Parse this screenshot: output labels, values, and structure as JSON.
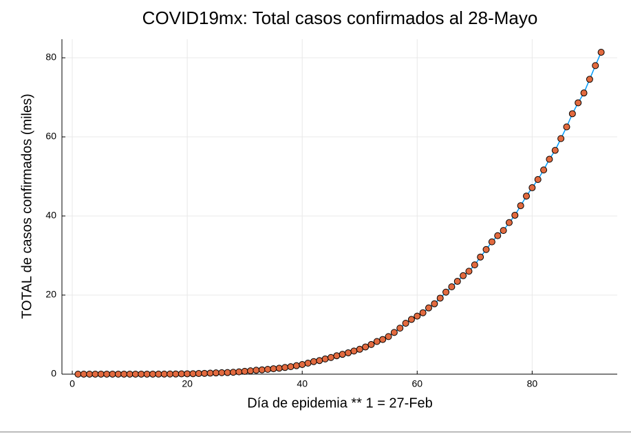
{
  "chart_data": {
    "type": "scatter",
    "title": "COVID19mx: Total casos confirmados al 28-Mayo",
    "x_label": "Día de epidemia ** 1 = 27-Feb",
    "y_label": "TOTAL de casos confirmados (miles)",
    "x": [
      1,
      2,
      3,
      4,
      5,
      6,
      7,
      8,
      9,
      10,
      11,
      12,
      13,
      14,
      15,
      16,
      17,
      18,
      19,
      20,
      21,
      22,
      23,
      24,
      25,
      26,
      27,
      28,
      29,
      30,
      31,
      32,
      33,
      34,
      35,
      36,
      37,
      38,
      39,
      40,
      41,
      42,
      43,
      44,
      45,
      46,
      47,
      48,
      49,
      50,
      51,
      52,
      53,
      54,
      55,
      56,
      57,
      58,
      59,
      60,
      61,
      62,
      63,
      64,
      65,
      66,
      67,
      68,
      69,
      70,
      71,
      72,
      73,
      74,
      75,
      76,
      77,
      78,
      79,
      80,
      81,
      82,
      83,
      84,
      85,
      86,
      87,
      88,
      89,
      90,
      91,
      92
    ],
    "series": [
      {
        "color": "#e26a3f",
        "line_color": "#009af9",
        "values": [
          0.001,
          0.004,
          0.004,
          0.005,
          0.005,
          0.005,
          0.005,
          0.005,
          0.006,
          0.007,
          0.007,
          0.007,
          0.007,
          0.008,
          0.012,
          0.026,
          0.041,
          0.053,
          0.082,
          0.093,
          0.118,
          0.164,
          0.203,
          0.251,
          0.316,
          0.367,
          0.405,
          0.475,
          0.585,
          0.717,
          0.848,
          0.993,
          1.094,
          1.215,
          1.378,
          1.51,
          1.688,
          1.89,
          2.143,
          2.439,
          2.785,
          3.181,
          3.441,
          3.844,
          4.219,
          4.661,
          5.014,
          5.399,
          5.847,
          6.297,
          6.875,
          7.497,
          8.261,
          8.772,
          9.501,
          10.544,
          11.633,
          12.872,
          13.842,
          14.677,
          15.529,
          16.752,
          17.799,
          19.224,
          20.739,
          22.088,
          23.471,
          24.905,
          26.025,
          27.634,
          29.616,
          31.522,
          33.46,
          35.022,
          36.327,
          38.324,
          40.186,
          42.595,
          45.032,
          47.144,
          49.219,
          51.633,
          54.346,
          56.594,
          59.567,
          62.527,
          65.856,
          68.62,
          71.105,
          74.56,
          78.023,
          81.4
        ]
      }
    ],
    "xlim": [
      -1.8,
      94.8
    ],
    "ylim": [
      0,
      84.7
    ],
    "xticks": [
      0,
      20,
      40,
      60,
      80
    ],
    "yticks": [
      0,
      20,
      40,
      60,
      80
    ],
    "grid": true
  }
}
